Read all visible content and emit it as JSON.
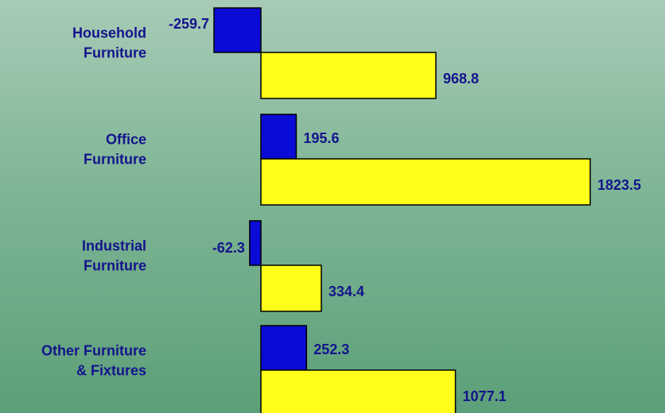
{
  "chart_data": {
    "type": "bar",
    "orientation": "horizontal",
    "categories": [
      [
        "Household",
        "Furniture"
      ],
      [
        "Office",
        "Furniture"
      ],
      [
        "Industrial",
        "Furniture"
      ],
      [
        "Other Furniture",
        "& Fixtures"
      ]
    ],
    "series": [
      {
        "values": [
          -259.7,
          195.6,
          -62.3,
          252.3
        ],
        "color": "#0b0bd6"
      },
      {
        "values": [
          968.8,
          1823.5,
          334.4,
          1077.1
        ],
        "color": "#ffff1a"
      }
    ],
    "value_labels": [
      [
        "-259.7",
        "195.6",
        "-62.3",
        "252.3"
      ],
      [
        "968.8",
        "1823.5",
        "334.4",
        "1077.1"
      ]
    ],
    "grid": false,
    "legend": "none"
  }
}
